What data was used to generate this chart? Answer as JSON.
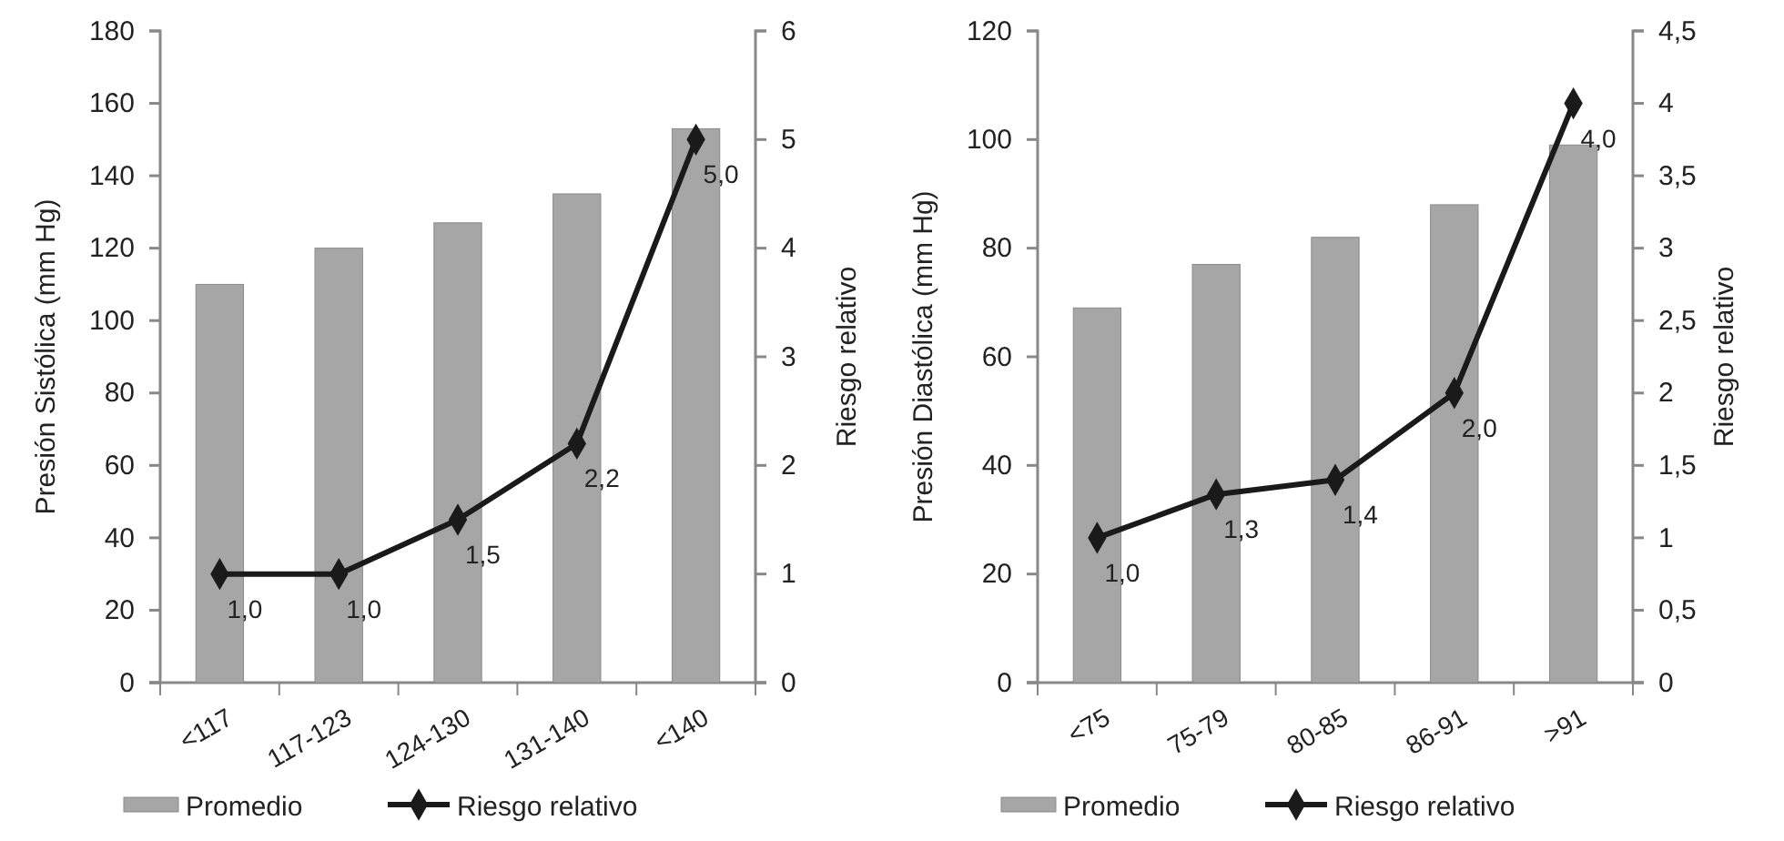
{
  "chart_data": [
    {
      "type": "bar",
      "categories": [
        "<117",
        "117-123",
        "124-130",
        "131-140",
        "<140"
      ],
      "ylabel": "Presión Sistólica (mm Hg)",
      "y2label": "Riesgo relativo",
      "ylim": [
        0,
        180
      ],
      "yticks": [
        0,
        20,
        40,
        60,
        80,
        100,
        120,
        140,
        160,
        180
      ],
      "y2lim": [
        0,
        6
      ],
      "y2ticks": [
        0,
        1,
        2,
        3,
        4,
        5,
        6
      ],
      "legend": "bottom",
      "grid": false,
      "series": [
        {
          "name": "Promedio",
          "color": "#a6a6a6",
          "values": [
            110,
            120,
            127,
            135,
            153
          ]
        },
        {
          "name": "Riesgo relativo",
          "type": "line",
          "axis": "y2",
          "color": "#1a1a1a",
          "marker": "diamond",
          "values": [
            1.0,
            1.0,
            1.5,
            2.2,
            5.0
          ],
          "value_labels": [
            "1,0",
            "1,0",
            "1,5",
            "2,2",
            "5,0"
          ]
        }
      ]
    },
    {
      "type": "bar",
      "categories": [
        "<75",
        "75-79",
        "80-85",
        "86-91",
        ">91"
      ],
      "ylabel": "Presión Diastólica (mm Hg)",
      "y2label": "Riesgo relativo",
      "ylim": [
        0,
        120
      ],
      "yticks": [
        0,
        20,
        40,
        60,
        80,
        100,
        120
      ],
      "y2lim": [
        0,
        4.5
      ],
      "y2ticks": [
        0,
        {
          "value": 0.5,
          "label": "0,5"
        },
        1,
        {
          "value": 1.5,
          "label": "1,5"
        },
        2,
        {
          "value": 2.5,
          "label": "2,5"
        },
        3,
        {
          "value": 3.5,
          "label": "3,5"
        },
        4,
        {
          "value": 4.5,
          "label": "4,5"
        }
      ],
      "legend": "bottom",
      "grid": false,
      "series": [
        {
          "name": "Promedio",
          "color": "#a6a6a6",
          "values": [
            69,
            77,
            82,
            88,
            99
          ]
        },
        {
          "name": "Riesgo relativo",
          "type": "line",
          "axis": "y2",
          "color": "#1a1a1a",
          "marker": "diamond",
          "values": [
            1.0,
            1.3,
            1.4,
            2.0,
            4.0
          ],
          "value_labels": [
            "1,0",
            "1,3",
            "1,4",
            "2,0",
            "4,0"
          ]
        }
      ]
    }
  ]
}
